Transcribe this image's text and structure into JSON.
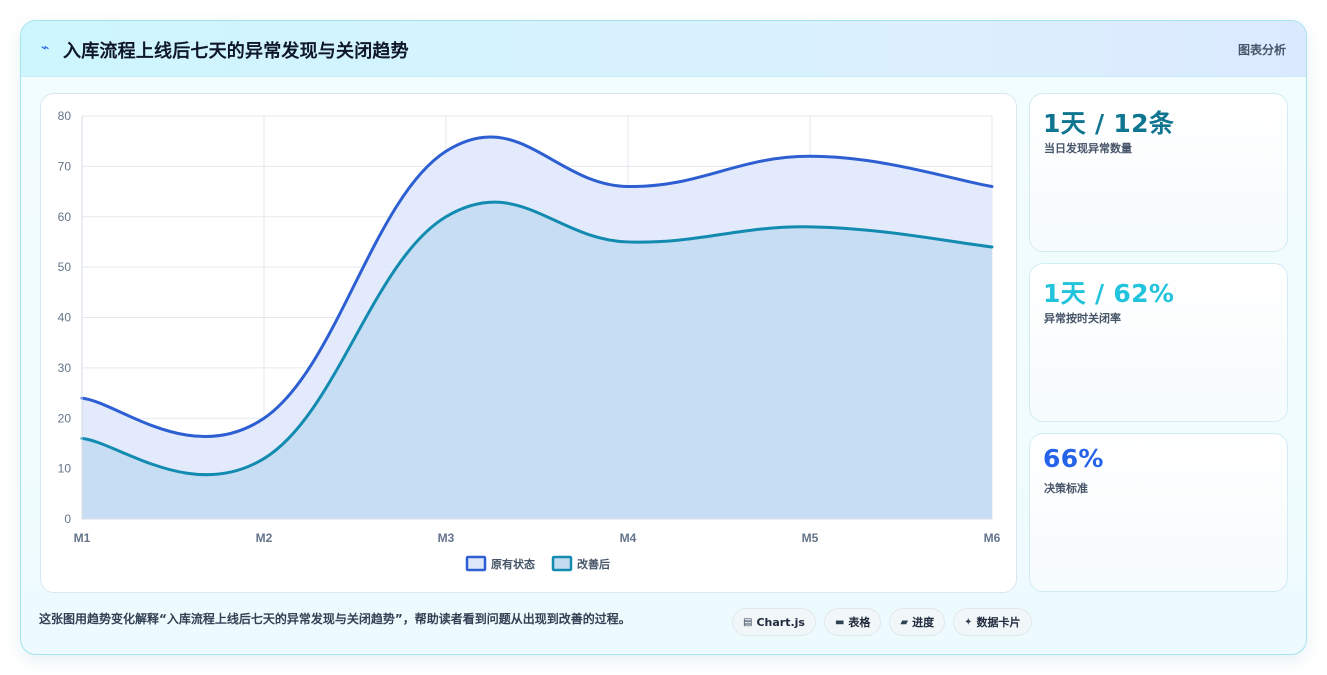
{
  "header": {
    "title": "入库流程上线后七天的异常发现与关闭趋势",
    "right_label": "图表分析"
  },
  "stats": [
    {
      "value": "1天 / 12条",
      "label": "当日发现异常数量",
      "color": "#0e7490"
    },
    {
      "value": "1天 / 62%",
      "label": "异常按时关闭率",
      "color": "#22c3dc"
    },
    {
      "value": "66%",
      "label": "决策标准",
      "color": "#2563eb"
    }
  ],
  "footer": {
    "description": "这张图用趋势变化解释“入库流程上线后七天的异常发现与关闭趋势”，帮助读者看到问题从出现到改善的过程。",
    "chips": [
      {
        "icon": "chart-icon",
        "glyph": "▤",
        "label": "Chart.js"
      },
      {
        "icon": "table-icon",
        "glyph": "▬",
        "label": "表格"
      },
      {
        "icon": "progress-icon",
        "glyph": "▰",
        "label": "进度"
      },
      {
        "icon": "sparkle-icon",
        "glyph": "✦",
        "label": "数据卡片"
      }
    ]
  },
  "chart_data": {
    "type": "area",
    "categories": [
      "M1",
      "M2",
      "M3",
      "M4",
      "M5",
      "M6"
    ],
    "series": [
      {
        "name": "原有状态",
        "values": [
          24,
          20,
          73,
          66,
          72,
          66
        ],
        "color": "#2d5fd3",
        "fill": "#dfe8fb"
      },
      {
        "name": "改善后",
        "values": [
          16,
          12,
          60,
          55,
          58,
          54
        ],
        "color": "#138bb0",
        "fill": "#c3dcf2"
      }
    ],
    "ylim": [
      0,
      80
    ],
    "yticks": [
      0,
      10,
      20,
      30,
      40,
      50,
      60,
      70,
      80
    ],
    "grid": true,
    "legend": "bottom"
  }
}
